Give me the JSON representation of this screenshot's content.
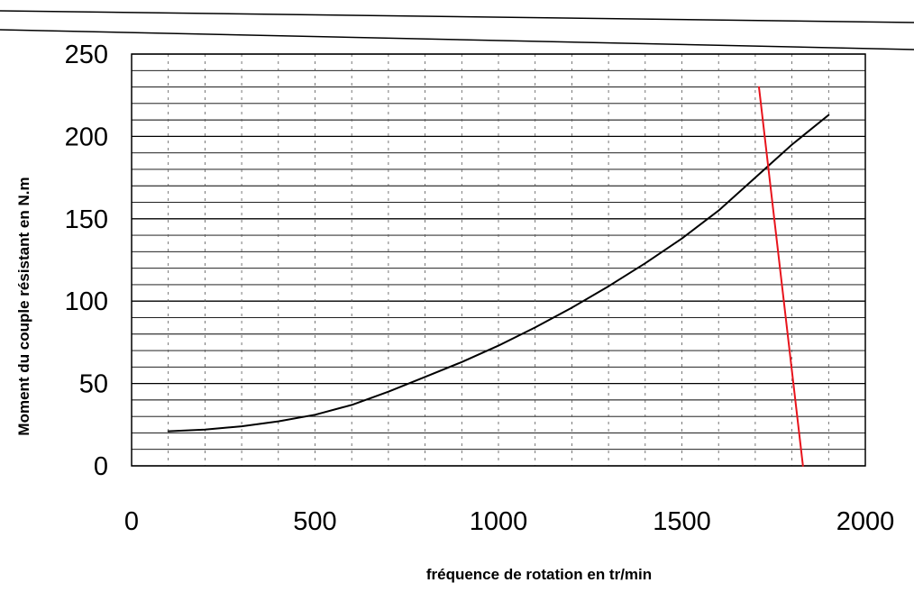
{
  "chart_data": {
    "type": "line",
    "title": "",
    "xlabel": "fréquence de rotation en tr/min",
    "ylabel": "Moment du couple résistant en N.m",
    "xlim": [
      0,
      2000
    ],
    "ylim": [
      0,
      250
    ],
    "x_ticks": [
      "0",
      "500",
      "1000",
      "1500",
      "2000"
    ],
    "y_ticks": [
      "0",
      "50",
      "100",
      "150",
      "200",
      "250"
    ],
    "grid": true,
    "legend": "none",
    "series": [
      {
        "color": "#000000",
        "x": [
          100,
          200,
          300,
          400,
          500,
          600,
          700,
          800,
          900,
          1000,
          1100,
          1200,
          1300,
          1400,
          1500,
          1600,
          1700,
          1800,
          1900
        ],
        "y": [
          21,
          22,
          24,
          27,
          31,
          37,
          45,
          54,
          63,
          73,
          84,
          96,
          109,
          123,
          138,
          155,
          175,
          195,
          213
        ]
      },
      {
        "color": "#e8141c",
        "x": [
          1710,
          1830
        ],
        "y": [
          230,
          0
        ]
      }
    ]
  }
}
